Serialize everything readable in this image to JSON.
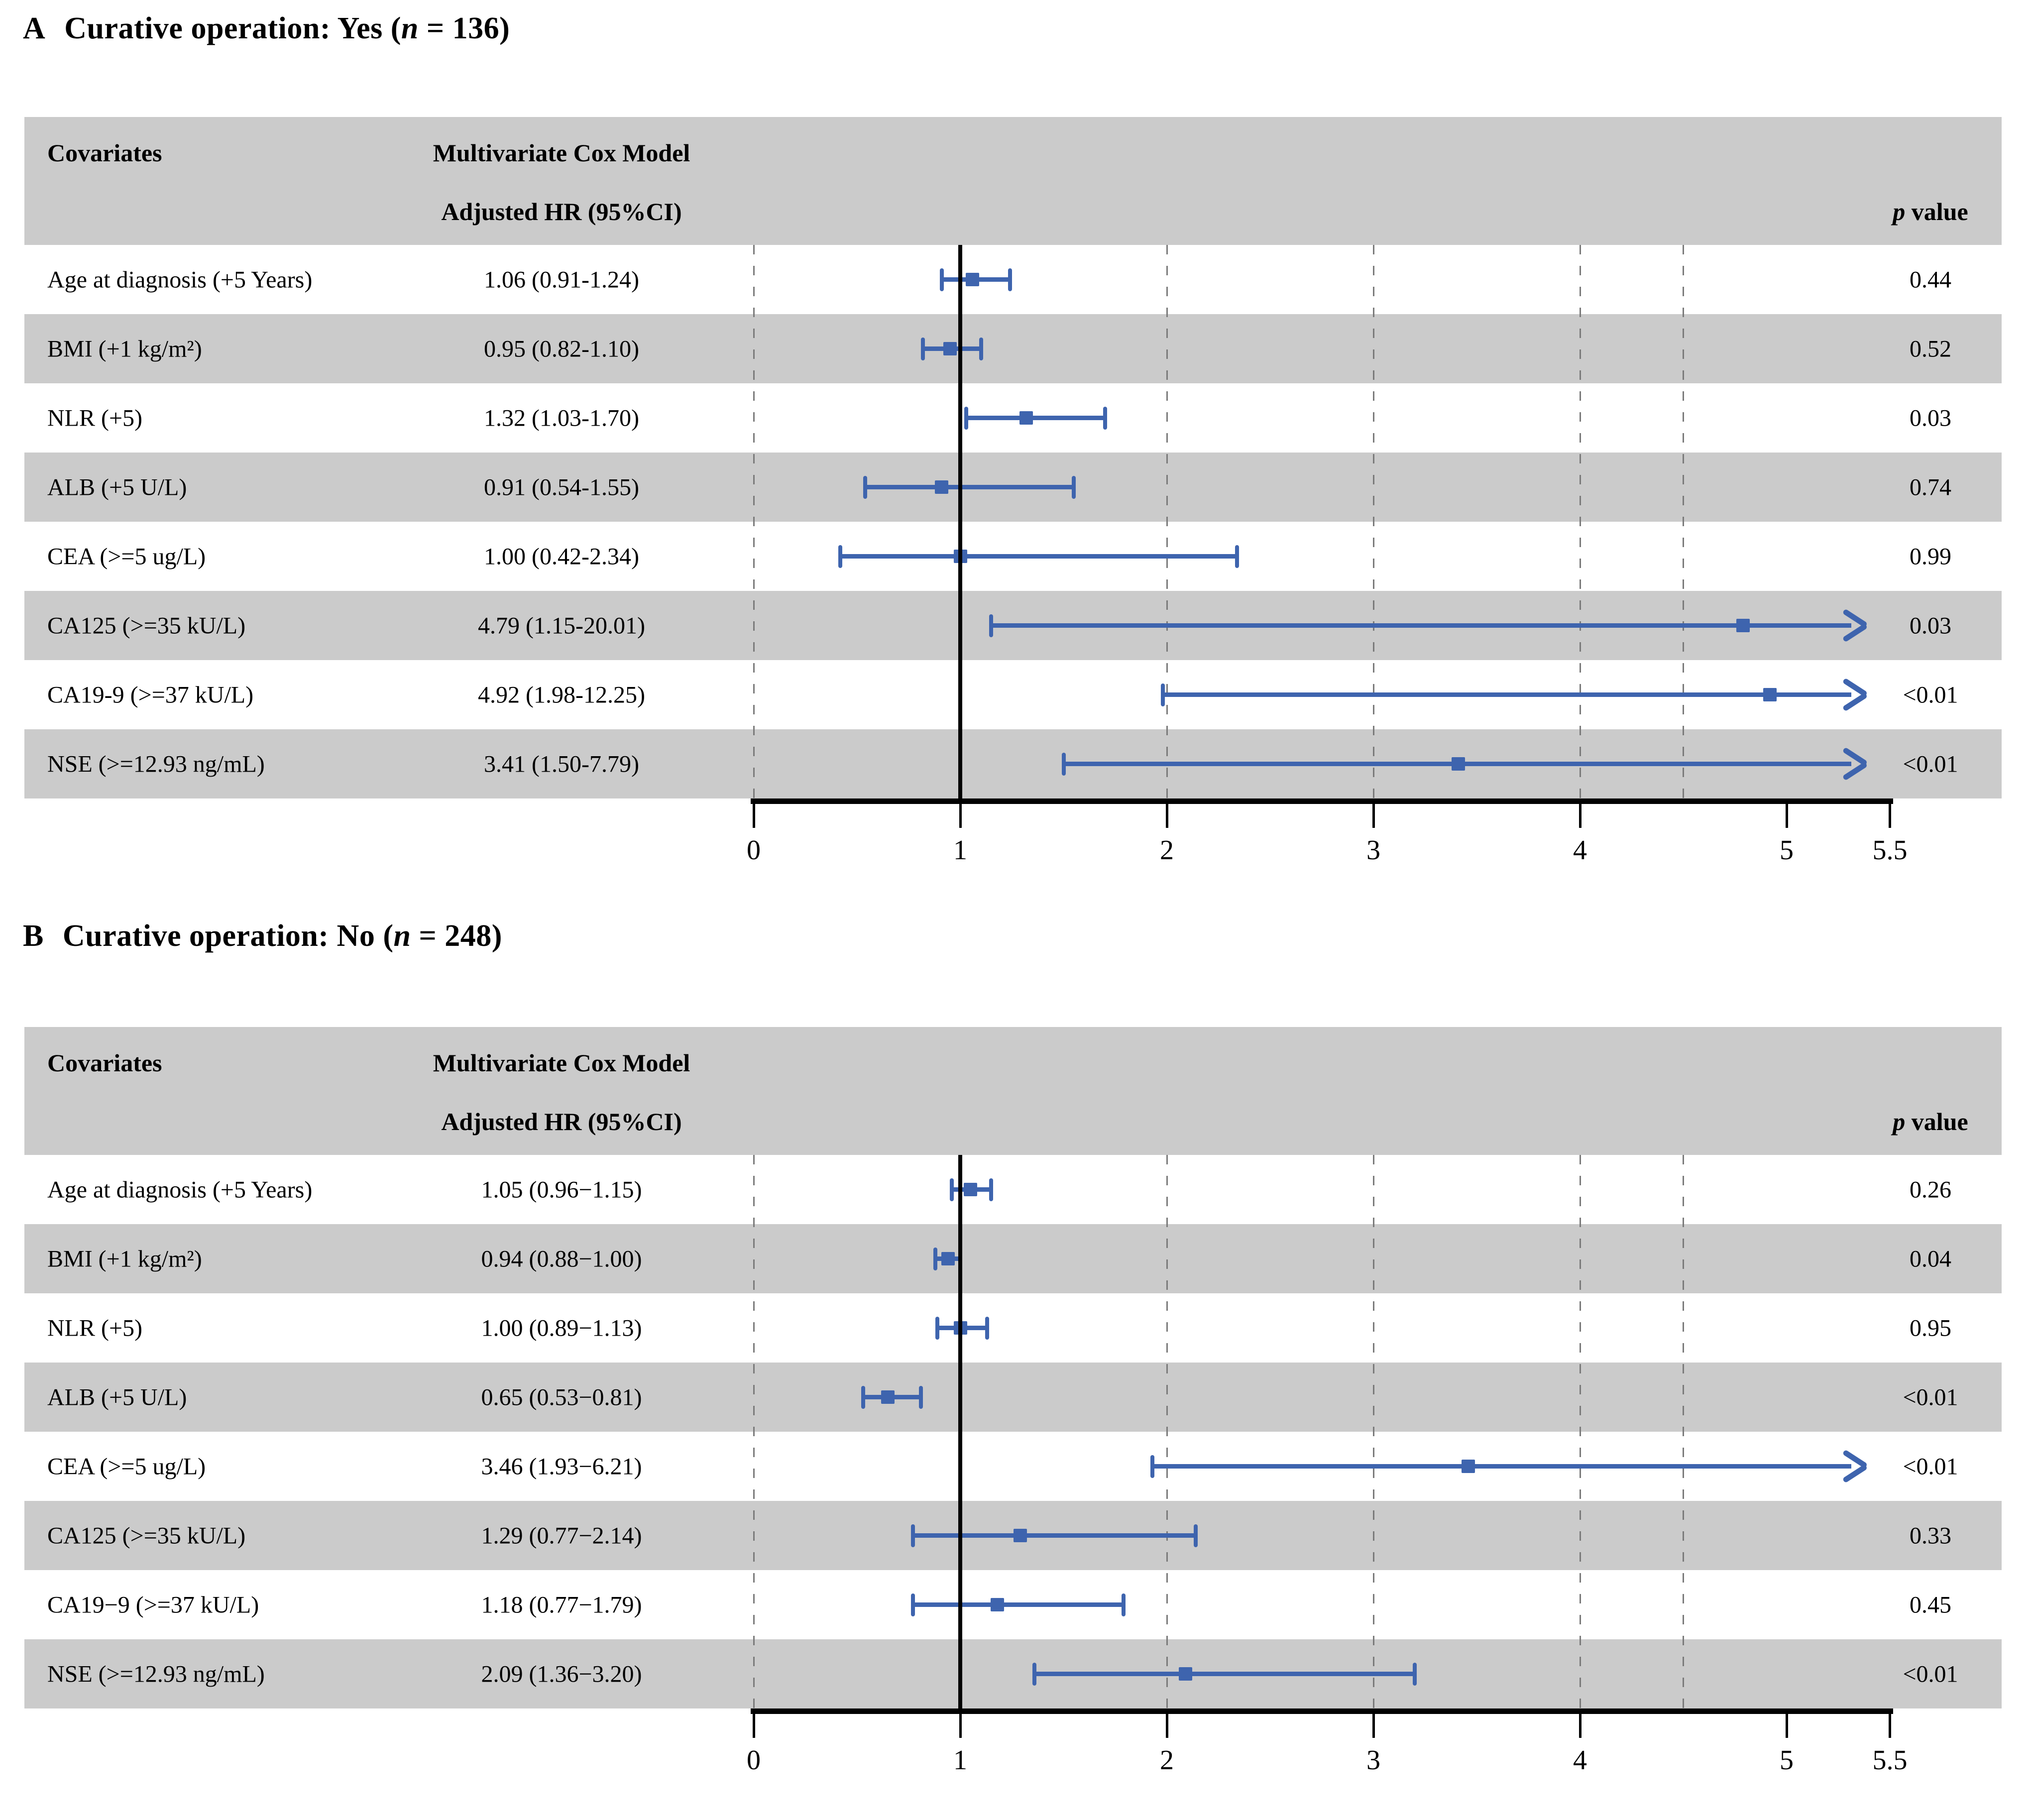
{
  "colors": {
    "stripe": "#cbcbcb",
    "bar_blue": "#3e64ae",
    "grid_gray": "#7b7b7b",
    "axis_black": "#000000",
    "background": "#ffffff"
  },
  "chart_data": [
    {
      "type": "forest",
      "panel": "A",
      "title": {
        "letter": "A",
        "name": "Curative operation: Yes (",
        "n": "n",
        "tail": " = 136)"
      },
      "header": {
        "covariates": "Covariates",
        "model": "Multivariate Cox Model",
        "hr": "Adjusted HR (95%CI)",
        "p": "p",
        "p_rest": " value"
      },
      "axis": {
        "min": 0,
        "max": 5.5,
        "ticks": [
          0,
          1,
          2,
          3,
          4,
          5,
          5.5
        ],
        "tick_labels": [
          "0",
          "1",
          "2",
          "3",
          "4",
          "5",
          "5.5"
        ],
        "dashed_gridlines": [
          0,
          2,
          3,
          4,
          4.5
        ],
        "reference_line": 1,
        "arrow_end": 5.38,
        "grid": true
      },
      "rows": [
        {
          "label": "Age at diagnosis (+5 Years)",
          "hr_text": "1.06 (0.91-1.24)",
          "est": 1.06,
          "lo": 0.91,
          "hi": 1.24,
          "p": "0.44",
          "arrow": false
        },
        {
          "label": "BMI (+1 kg/m²)",
          "hr_text": "0.95 (0.82-1.10)",
          "est": 0.95,
          "lo": 0.82,
          "hi": 1.1,
          "p": "0.52",
          "arrow": false
        },
        {
          "label": "NLR (+5)",
          "hr_text": "1.32 (1.03-1.70)",
          "est": 1.32,
          "lo": 1.03,
          "hi": 1.7,
          "p": "0.03",
          "arrow": false
        },
        {
          "label": "ALB (+5 U/L)",
          "hr_text": "0.91 (0.54-1.55)",
          "est": 0.91,
          "lo": 0.54,
          "hi": 1.55,
          "p": "0.74",
          "arrow": false
        },
        {
          "label": "CEA (>=5 ug/L)",
          "hr_text": "1.00 (0.42-2.34)",
          "est": 1.0,
          "lo": 0.42,
          "hi": 2.34,
          "p": "0.99",
          "arrow": false
        },
        {
          "label": "CA125 (>=35 kU/L)",
          "hr_text": "4.79 (1.15-20.01)",
          "est": 4.79,
          "lo": 1.15,
          "hi": 20.01,
          "p": "0.03",
          "arrow": true
        },
        {
          "label": "CA19-9 (>=37 kU/L)",
          "hr_text": "4.92 (1.98-12.25)",
          "est": 4.92,
          "lo": 1.98,
          "hi": 12.25,
          "p": "<0.01",
          "arrow": true
        },
        {
          "label": "NSE (>=12.93 ng/mL)",
          "hr_text": "3.41 (1.50-7.79)",
          "est": 3.41,
          "lo": 1.5,
          "hi": 7.79,
          "p": "<0.01",
          "arrow": true
        }
      ]
    },
    {
      "type": "forest",
      "panel": "B",
      "title": {
        "letter": "B",
        "name": "Curative operation: No (",
        "n": "n",
        "tail": " = 248)"
      },
      "header": {
        "covariates": "Covariates",
        "model": "Multivariate Cox Model",
        "hr": "Adjusted HR (95%CI)",
        "p": "p",
        "p_rest": " value"
      },
      "axis": {
        "min": 0,
        "max": 5.5,
        "ticks": [
          0,
          1,
          2,
          3,
          4,
          5,
          5.5
        ],
        "tick_labels": [
          "0",
          "1",
          "2",
          "3",
          "4",
          "5",
          "5.5"
        ],
        "dashed_gridlines": [
          0,
          2,
          3,
          4,
          4.5
        ],
        "reference_line": 1,
        "arrow_end": 5.38,
        "grid": true
      },
      "rows": [
        {
          "label": "Age at diagnosis (+5 Years)",
          "hr_text": "1.05 (0.96−1.15)",
          "est": 1.05,
          "lo": 0.96,
          "hi": 1.15,
          "p": "0.26",
          "arrow": false
        },
        {
          "label": "BMI (+1 kg/m²)",
          "hr_text": "0.94 (0.88−1.00)",
          "est": 0.94,
          "lo": 0.88,
          "hi": 1.0,
          "p": "0.04",
          "arrow": false
        },
        {
          "label": "NLR (+5)",
          "hr_text": "1.00 (0.89−1.13)",
          "est": 1.0,
          "lo": 0.89,
          "hi": 1.13,
          "p": "0.95",
          "arrow": false
        },
        {
          "label": "ALB (+5 U/L)",
          "hr_text": "0.65 (0.53−0.81)",
          "est": 0.65,
          "lo": 0.53,
          "hi": 0.81,
          "p": "<0.01",
          "arrow": false
        },
        {
          "label": "CEA (>=5 ug/L)",
          "hr_text": "3.46 (1.93−6.21)",
          "est": 3.46,
          "lo": 1.93,
          "hi": 6.21,
          "p": "<0.01",
          "arrow": true
        },
        {
          "label": "CA125 (>=35 kU/L)",
          "hr_text": "1.29 (0.77−2.14)",
          "est": 1.29,
          "lo": 0.77,
          "hi": 2.14,
          "p": "0.33",
          "arrow": false
        },
        {
          "label": "CA19−9 (>=37 kU/L)",
          "hr_text": "1.18 (0.77−1.79)",
          "est": 1.18,
          "lo": 0.77,
          "hi": 1.79,
          "p": "0.45",
          "arrow": false
        },
        {
          "label": "NSE (>=12.93 ng/mL)",
          "hr_text": "2.09 (1.36−3.20)",
          "est": 2.09,
          "lo": 1.36,
          "hi": 3.2,
          "p": "<0.01",
          "arrow": false
        }
      ]
    }
  ]
}
